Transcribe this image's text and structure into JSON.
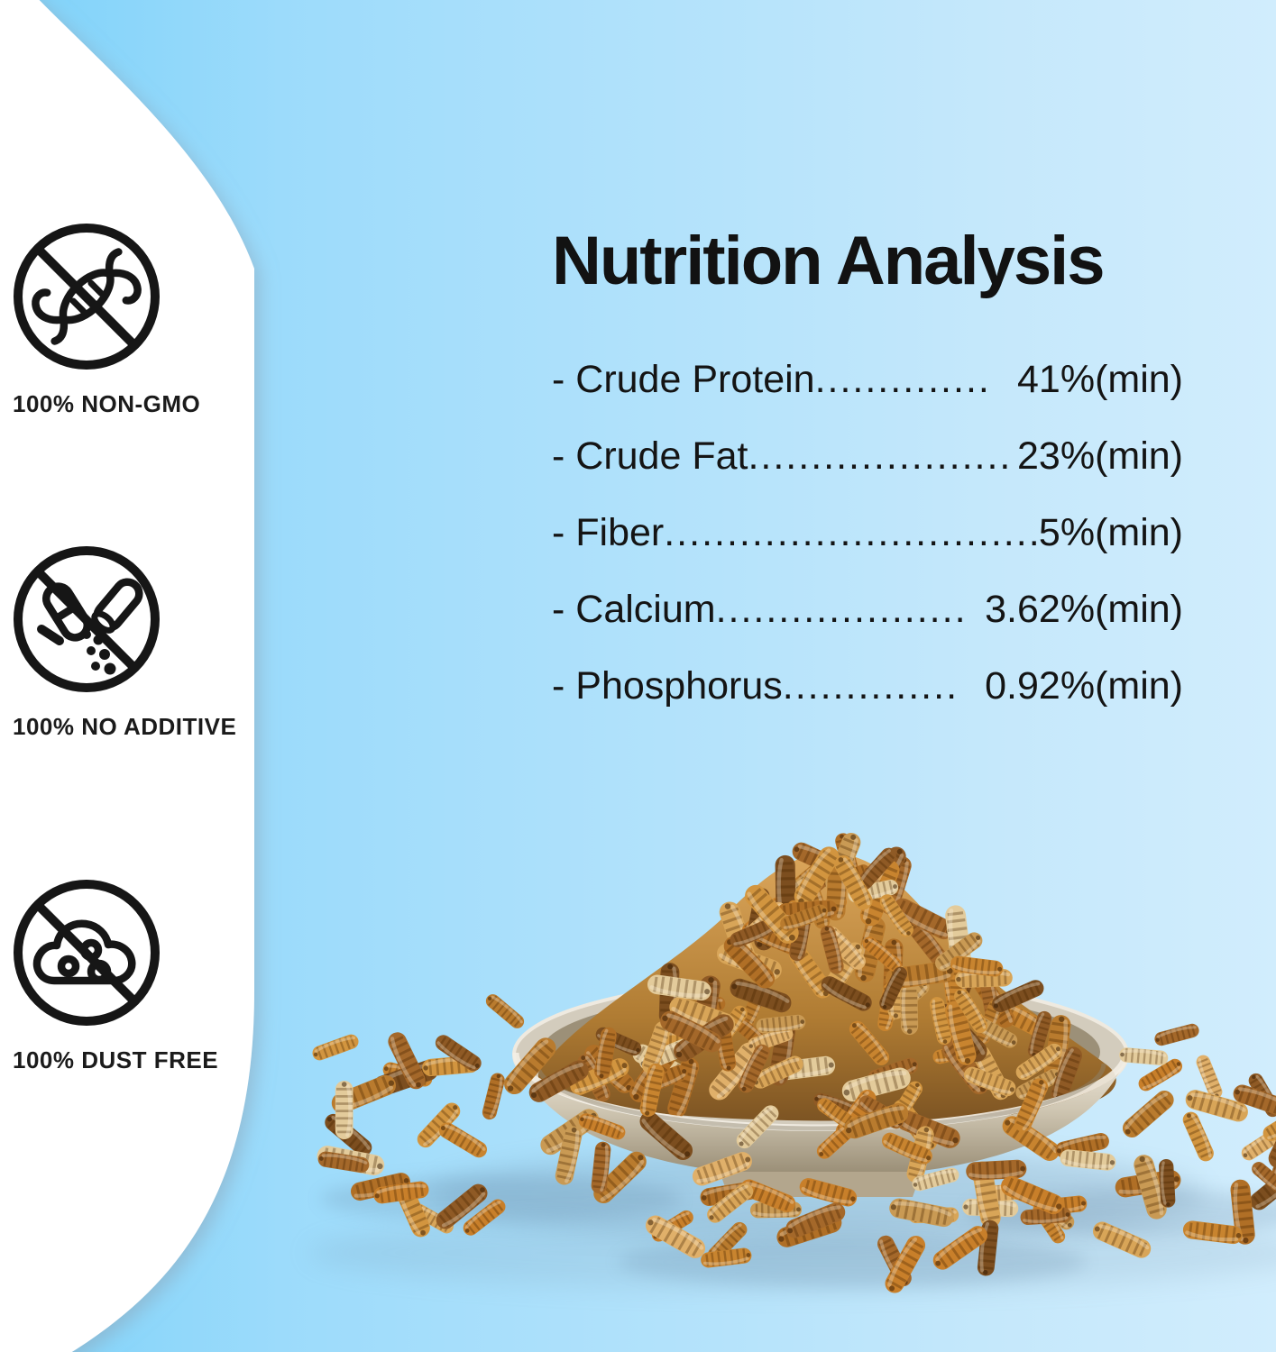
{
  "title": "Nutrition Analysis",
  "nutrition": {
    "rows": [
      {
        "label": "- Crude Protein",
        "dots": "..............",
        "value": "41%(min)"
      },
      {
        "label": "- Crude Fat",
        "dots": ".....................",
        "value": "23%(min)"
      },
      {
        "label": "- Fiber",
        "dots": "..............................",
        "value": "5%(min)"
      },
      {
        "label": "- Calcium",
        "dots": "....................",
        "value": "3.62%(min)"
      },
      {
        "label": "- Phosphorus",
        "dots": "..............",
        "value": "0.92%(min)"
      }
    ]
  },
  "features": [
    {
      "icon": "no-gmo-icon",
      "label": "100% NON-GMO"
    },
    {
      "icon": "no-additive-icon",
      "label": "100% NO ADDITIVE"
    },
    {
      "icon": "dust-free-icon",
      "label": "100% DUST FREE"
    }
  ],
  "photo": {
    "description": "Ceramic plate piled high with dried black soldier fly larvae, with loose dried larvae scattered around the plate"
  },
  "colors": {
    "background_left": "#7ed2f9",
    "background_right": "#d1edfd",
    "panel": "#ffffff",
    "text": "#141414"
  }
}
